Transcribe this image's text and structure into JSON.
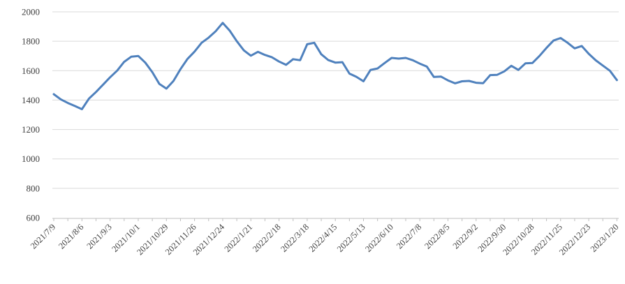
{
  "chart_data": {
    "type": "line",
    "title": "",
    "xlabel": "",
    "ylabel": "",
    "ylim": [
      600,
      2000
    ],
    "y_ticks": [
      2000,
      1800,
      1600,
      1400,
      1200,
      1000,
      800,
      600
    ],
    "grid": "horizontal gridlines on, light gray",
    "legend": "none",
    "markers": "none",
    "x_interval": "weekly (7 days)",
    "x_start": "2021/7/9",
    "x_end": "2023/1/20",
    "x_tick_label_every_n_points": 4,
    "x_tick_labels": [
      "2021/7/9",
      "2021/8/6",
      "2021/9/3",
      "2021/10/1",
      "2021/10/29",
      "2021/11/26",
      "2021/12/24",
      "2022/1/21",
      "2022/2/18",
      "2022/3/18",
      "2022/4/15",
      "2022/5/13",
      "2022/6/10",
      "2022/7/8",
      "2022/8/5",
      "2022/9/2",
      "2022/9/30",
      "2022/10/28",
      "2022/11/25",
      "2022/12/23",
      "2023/1/20"
    ],
    "series": [
      {
        "name": "price-index-line",
        "color": "#4f81bd",
        "values": [
          1440,
          1405,
          1380,
          1360,
          1338,
          1410,
          1455,
          1505,
          1555,
          1600,
          1660,
          1695,
          1700,
          1655,
          1590,
          1510,
          1478,
          1530,
          1610,
          1680,
          1730,
          1790,
          1825,
          1868,
          1925,
          1872,
          1800,
          1738,
          1702,
          1728,
          1707,
          1691,
          1662,
          1640,
          1678,
          1671,
          1780,
          1790,
          1712,
          1672,
          1655,
          1658,
          1580,
          1558,
          1528,
          1605,
          1615,
          1652,
          1687,
          1682,
          1687,
          1671,
          1648,
          1628,
          1557,
          1560,
          1534,
          1514,
          1528,
          1530,
          1518,
          1515,
          1570,
          1572,
          1595,
          1633,
          1605,
          1650,
          1652,
          1700,
          1755,
          1805,
          1822,
          1790,
          1752,
          1768,
          1715,
          1670,
          1635,
          1600,
          1536
        ]
      }
    ]
  },
  "colors": {
    "line": "#4f81bd",
    "gridline": "#d9d9d9",
    "axis_line": "#bfbfbf",
    "tick_mark": "#bfbfbf",
    "tick_label": "#404040",
    "background": "#ffffff"
  }
}
